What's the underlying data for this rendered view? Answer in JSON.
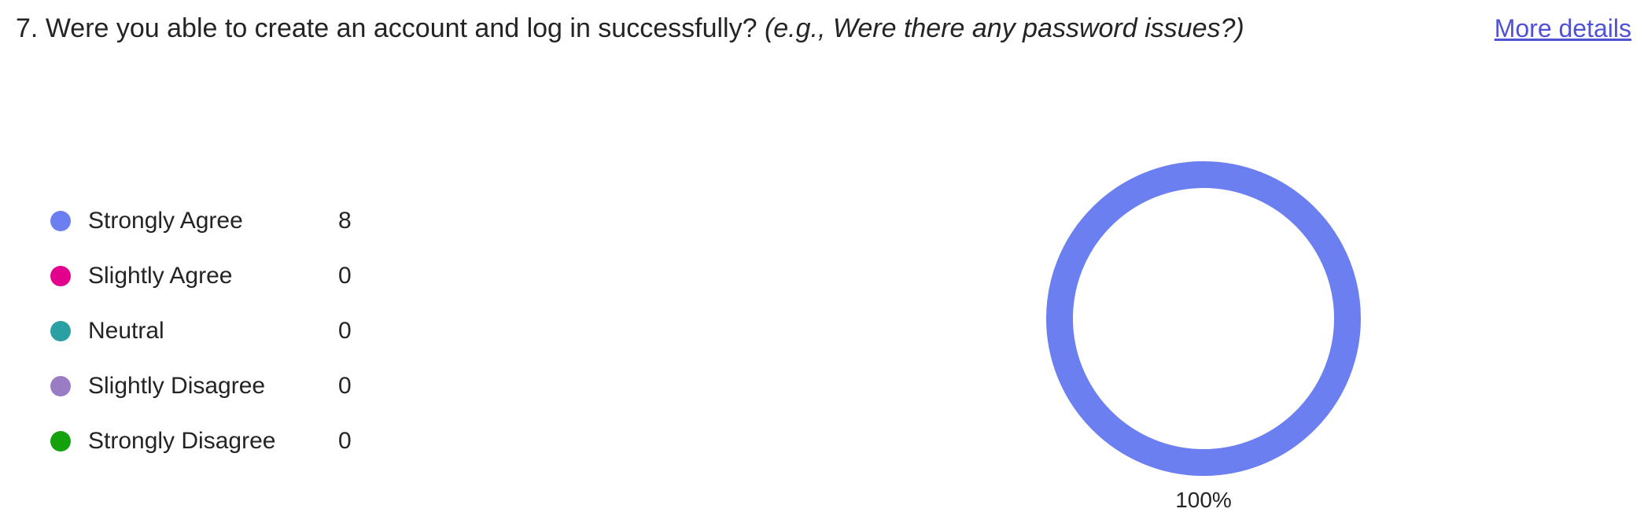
{
  "question": {
    "number": "7.",
    "text": "Were you able to create an account and log in successfully?",
    "hint": "(e.g., Were there any password issues?)"
  },
  "more_details_label": "More details",
  "chart_data": {
    "type": "pie",
    "categories": [
      "Strongly Agree",
      "Slightly Agree",
      "Neutral",
      "Slightly Disagree",
      "Strongly Disagree"
    ],
    "values": [
      8,
      0,
      0,
      0,
      0
    ],
    "colors": [
      "#6b7ff0",
      "#e3008c",
      "#2aa0a4",
      "#9a7cc5",
      "#13a10e"
    ],
    "slice_labels": [
      "100%"
    ],
    "legend": "left"
  }
}
